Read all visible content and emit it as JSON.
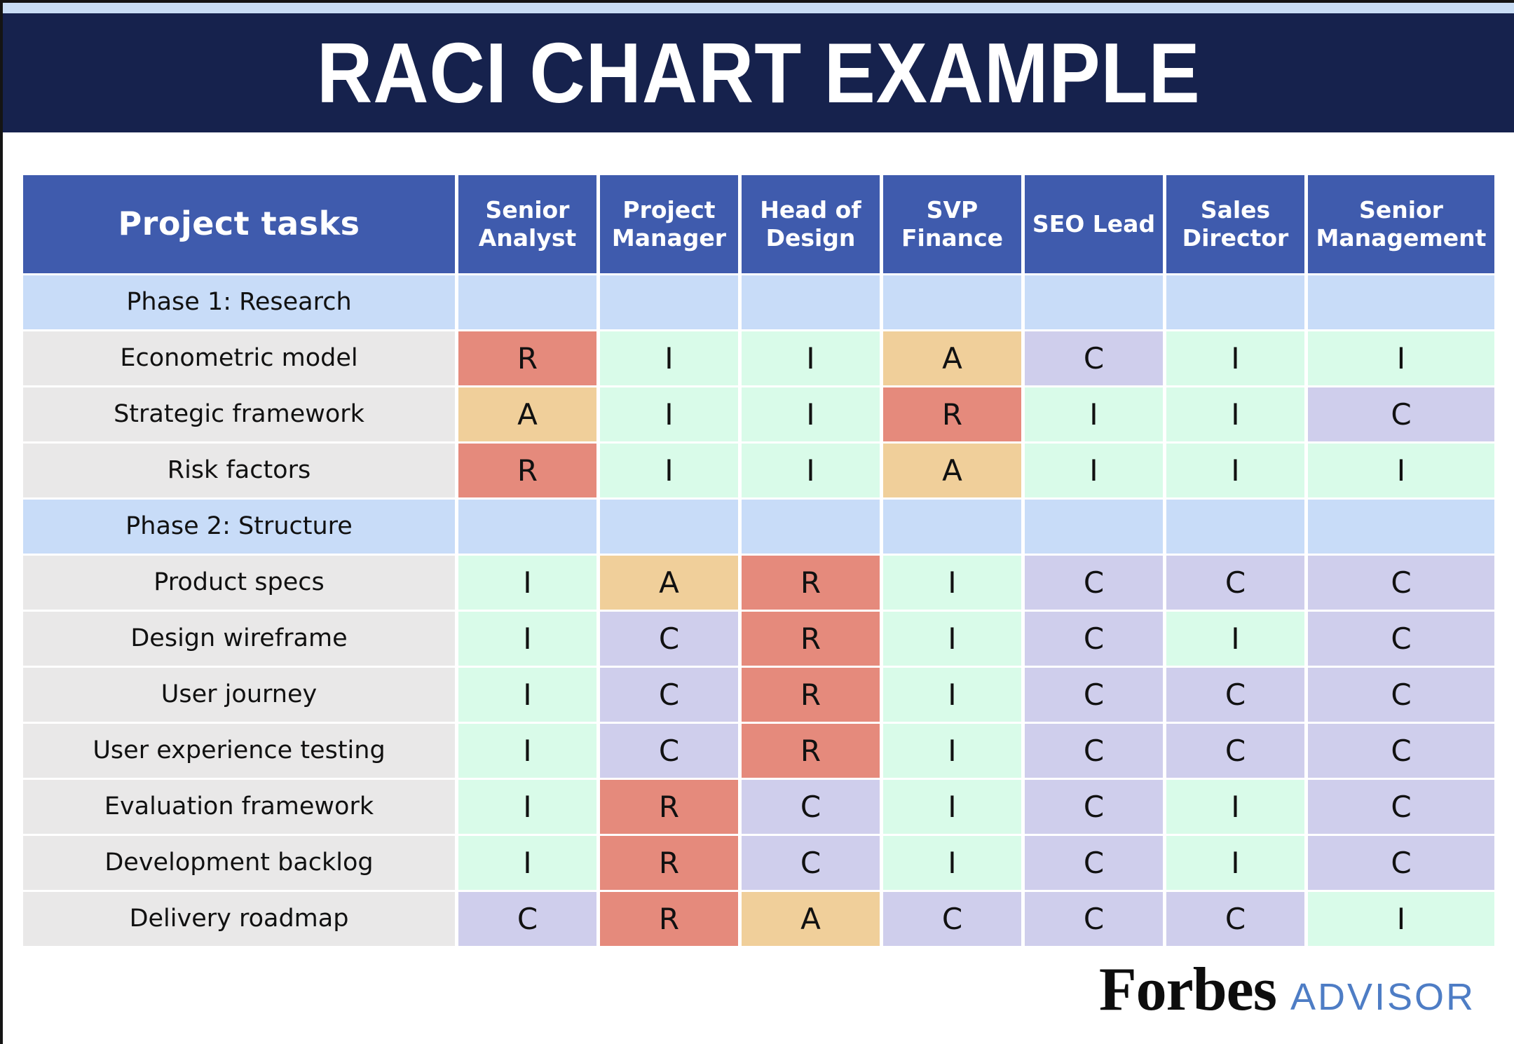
{
  "banner": {
    "title": "RACI CHART EXAMPLE"
  },
  "chart_data": {
    "type": "table",
    "title": "RACI CHART EXAMPLE",
    "task_column_header": "Project tasks",
    "role_columns": [
      "Senior Analyst",
      "Project Manager",
      "Head of Design",
      "SVP Finance",
      "SEO Lead",
      "Sales Director",
      "Senior Management"
    ],
    "rows": [
      {
        "type": "phase",
        "label": "Phase 1: Research",
        "values": [
          "",
          "",
          "",
          "",
          "",
          "",
          ""
        ]
      },
      {
        "type": "task",
        "label": "Econometric model",
        "values": [
          "R",
          "I",
          "I",
          "A",
          "C",
          "I",
          "I"
        ]
      },
      {
        "type": "task",
        "label": "Strategic framework",
        "values": [
          "A",
          "I",
          "I",
          "R",
          "I",
          "I",
          "C"
        ]
      },
      {
        "type": "task",
        "label": "Risk factors",
        "values": [
          "R",
          "I",
          "I",
          "A",
          "I",
          "I",
          "I"
        ]
      },
      {
        "type": "phase",
        "label": "Phase 2: Structure",
        "values": [
          "",
          "",
          "",
          "",
          "",
          "",
          ""
        ]
      },
      {
        "type": "task",
        "label": "Product specs",
        "values": [
          "I",
          "A",
          "R",
          "I",
          "C",
          "C",
          "C"
        ]
      },
      {
        "type": "task",
        "label": "Design wireframe",
        "values": [
          "I",
          "C",
          "R",
          "I",
          "C",
          "I",
          "C"
        ]
      },
      {
        "type": "task",
        "label": "User journey",
        "values": [
          "I",
          "C",
          "R",
          "I",
          "C",
          "C",
          "C"
        ]
      },
      {
        "type": "task",
        "label": "User experience testing",
        "values": [
          "I",
          "C",
          "R",
          "I",
          "C",
          "C",
          "C"
        ]
      },
      {
        "type": "task",
        "label": "Evaluation framework",
        "values": [
          "I",
          "R",
          "C",
          "I",
          "C",
          "I",
          "C"
        ]
      },
      {
        "type": "task",
        "label": "Development backlog",
        "values": [
          "I",
          "R",
          "C",
          "I",
          "C",
          "I",
          "C"
        ]
      },
      {
        "type": "task",
        "label": "Delivery roadmap",
        "values": [
          "C",
          "R",
          "A",
          "C",
          "C",
          "C",
          "I"
        ]
      }
    ]
  },
  "colors": {
    "responsible_R": "#e58a7c",
    "accountable_A": "#f0cf9a",
    "consulted_C": "#cfceec",
    "informed_I": "#d9fbe9",
    "phase_row": "#c8dcf8",
    "task_cell": "#e9e8e8",
    "header_cell": "#3f5bad",
    "banner_navy": "#16224d",
    "top_strip": "#c9ddf5",
    "advisor_blue": "#4e7dc5"
  },
  "footer": {
    "brand": "Forbes",
    "suffix": "ADVISOR"
  }
}
